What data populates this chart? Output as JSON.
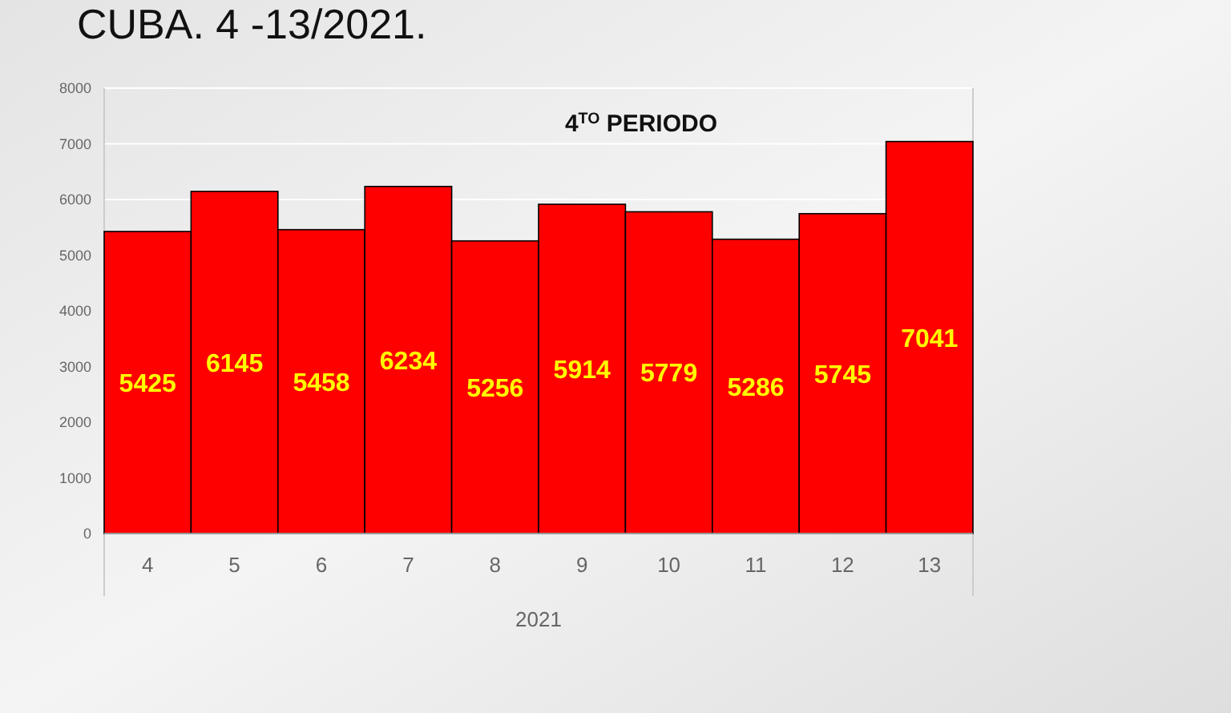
{
  "chart_data": {
    "type": "bar",
    "title": "CUBA. 4 -13/2021.",
    "xlabel": "2021",
    "categories": [
      "4",
      "5",
      "6",
      "7",
      "8",
      "9",
      "10",
      "11",
      "12",
      "13"
    ],
    "values": [
      5425,
      6145,
      5458,
      6234,
      5256,
      5914,
      5779,
      5286,
      5745,
      7041
    ],
    "color": "#ff0000",
    "data_labels": true,
    "ylim": [
      0,
      8000
    ],
    "yticks": [
      0,
      1000,
      2000,
      3000,
      4000,
      5000,
      6000,
      7000,
      8000
    ],
    "grid": "y",
    "annotations": [
      "4$^{TO}$ PERIODO"
    ]
  }
}
